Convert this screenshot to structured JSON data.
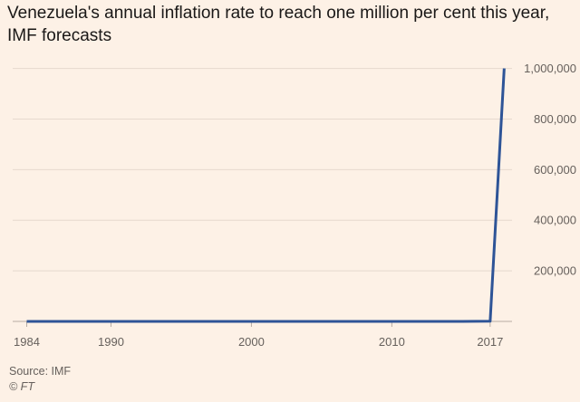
{
  "chart_data": {
    "type": "line",
    "title": "Venezuela's annual inflation rate to reach one million per cent this year, IMF forecasts",
    "xlabel": "",
    "ylabel": "",
    "x": [
      1984,
      1985,
      1986,
      1987,
      1988,
      1989,
      1990,
      1991,
      1992,
      1993,
      1994,
      1995,
      1996,
      1997,
      1998,
      1999,
      2000,
      2001,
      2002,
      2003,
      2004,
      2005,
      2006,
      2007,
      2008,
      2009,
      2010,
      2011,
      2012,
      2013,
      2014,
      2015,
      2016,
      2017,
      2018
    ],
    "series": [
      {
        "values": [
          12,
          11,
          12,
          40,
          35,
          81,
          37,
          31,
          32,
          46,
          71,
          57,
          103,
          38,
          30,
          24,
          16,
          13,
          31,
          27,
          19,
          14,
          17,
          22,
          31,
          27,
          28,
          26,
          21,
          56,
          69,
          181,
          274,
          863,
          1000000
        ],
        "color": "#2e5497"
      }
    ],
    "xlim": [
      1983,
      2018.3
    ],
    "ylim": [
      0,
      1020000
    ],
    "xticks": [
      1984,
      1990,
      2000,
      2010,
      2017
    ],
    "xtick_labels": [
      "1984",
      "1990",
      "2000",
      "2010",
      "2017"
    ],
    "yticks": [
      200000,
      400000,
      600000,
      800000,
      1000000
    ],
    "ytick_labels": [
      "200,000",
      "400,000",
      "600,000",
      "800,000",
      "1,000,000"
    ],
    "grid": true,
    "y_axis_side": "right",
    "source": "Source: IMF",
    "copyright": "© FT"
  }
}
